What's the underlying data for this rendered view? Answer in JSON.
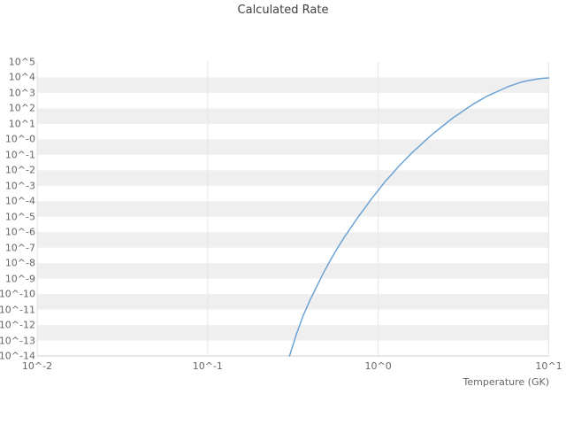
{
  "title": "Calculated Rate",
  "x_axis": {
    "label": "Temperature (GK)",
    "ticks": [
      "10^-2",
      "10^-1",
      "10^0",
      "10^1"
    ],
    "tick_values": [
      0.01,
      0.1,
      1,
      10
    ]
  },
  "y_axis": {
    "ticks": [
      "10^5",
      "10^4",
      "10^3",
      "10^2",
      "10^1",
      "10^-0",
      "10^-1",
      "10^-2",
      "10^-3",
      "10^-4",
      "10^-5",
      "10^-6",
      "10^-7",
      "10^-8",
      "10^-9",
      "10^-10",
      "10^-11",
      "10^-12",
      "10^-13",
      "10^-14"
    ],
    "tick_values": [
      100000.0,
      10000.0,
      1000.0,
      100.0,
      10.0,
      1,
      0.1,
      0.01,
      0.001,
      0.0001,
      1e-05,
      1e-06,
      1e-07,
      1e-08,
      1e-09,
      1e-10,
      1e-11,
      1e-12,
      1e-13,
      1e-14
    ]
  },
  "colors": {
    "line": "#6ba3d6",
    "band": "#efefef",
    "grid": "#e6e6e6",
    "axis_line": "#cfcfcf",
    "axis_text": "#666666",
    "title_text": "#404040",
    "background": "#ffffff"
  },
  "chart_data": {
    "type": "line",
    "title": "Calculated Rate",
    "xlabel": "Temperature (GK)",
    "ylabel": "",
    "x_scale": "log",
    "y_scale": "log",
    "xlim": [
      0.01,
      10
    ],
    "ylim": [
      1e-14,
      100000.0
    ],
    "grid": "horizontal-bands",
    "legend": "none",
    "series": [
      {
        "name": "Calculated Rate",
        "x": [
          0.302,
          0.331,
          0.363,
          0.398,
          0.437,
          0.479,
          0.525,
          0.575,
          0.631,
          0.692,
          0.759,
          0.832,
          0.912,
          1.0,
          1.096,
          1.202,
          1.318,
          1.445,
          1.585,
          1.738,
          1.905,
          2.089,
          2.291,
          2.512,
          2.754,
          3.02,
          3.311,
          3.631,
          3.981,
          4.365,
          4.786,
          5.248,
          5.754,
          6.31,
          6.918,
          7.586,
          8.318,
          9.12,
          10.0
        ],
        "y": [
          1e-14,
          2.5e-13,
          4e-12,
          4e-11,
          3.2e-10,
          2.5e-09,
          1.6e-08,
          8.9e-08,
          4.5e-07,
          2e-06,
          8.9e-06,
          3.5e-05,
          0.00014,
          0.0005,
          0.0018,
          0.0056,
          0.018,
          0.05,
          0.141,
          0.355,
          0.891,
          2.24,
          5.01,
          11.2,
          25.1,
          50.1,
          100,
          200,
          355,
          631,
          1000,
          1585,
          2512,
          3548,
          5012,
          6310,
          7586,
          8710,
          9333
        ]
      }
    ]
  }
}
